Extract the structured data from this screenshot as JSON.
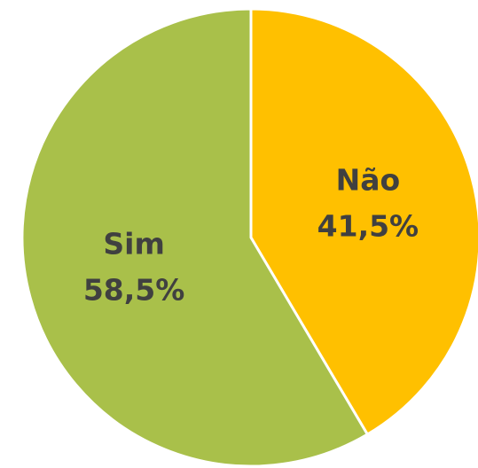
{
  "chart_data": {
    "type": "pie",
    "categories": [
      "Não",
      "Sim"
    ],
    "values": [
      41.5,
      58.5
    ],
    "value_labels": [
      "41,5%",
      "58,5%"
    ],
    "colors": [
      "#ffc000",
      "#a9c04a"
    ]
  }
}
